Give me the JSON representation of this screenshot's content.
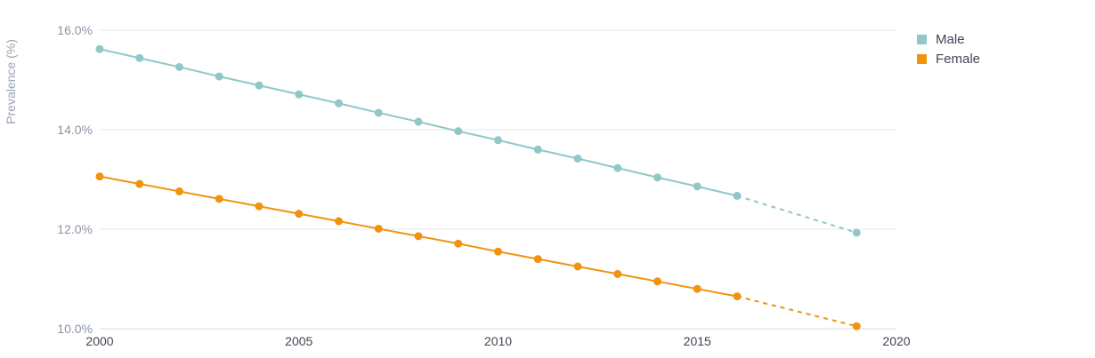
{
  "chart_data": {
    "type": "line",
    "title": "",
    "xlabel": "",
    "ylabel": "Prevalence (%)",
    "xlim": [
      2000,
      2020
    ],
    "ylim": [
      10.0,
      16.0
    ],
    "xticks": [
      "2000",
      "2005",
      "2010",
      "2015",
      "2020"
    ],
    "yticks": [
      "10.0%",
      "12.0%",
      "14.0%",
      "16.0%"
    ],
    "grid": "horizontal",
    "legend_position": "top-right",
    "projection": {
      "from": 2016,
      "to": 2019,
      "style": "dashed"
    },
    "series": [
      {
        "name": "Male",
        "color": "#91c7c7",
        "x": [
          2000,
          2001,
          2002,
          2003,
          2004,
          2005,
          2006,
          2007,
          2008,
          2009,
          2010,
          2011,
          2012,
          2013,
          2014,
          2015,
          2016,
          2019
        ],
        "values": [
          15.62,
          15.44,
          15.26,
          15.07,
          14.89,
          14.71,
          14.53,
          14.34,
          14.16,
          13.97,
          13.79,
          13.6,
          13.42,
          13.23,
          13.04,
          12.86,
          12.67,
          11.93
        ]
      },
      {
        "name": "Female",
        "color": "#f0930f",
        "x": [
          2000,
          2001,
          2002,
          2003,
          2004,
          2005,
          2006,
          2007,
          2008,
          2009,
          2010,
          2011,
          2012,
          2013,
          2014,
          2015,
          2016,
          2019
        ],
        "values": [
          13.06,
          12.91,
          12.76,
          12.61,
          12.46,
          12.31,
          12.16,
          12.01,
          11.86,
          11.71,
          11.55,
          11.4,
          11.25,
          11.1,
          10.95,
          10.8,
          10.65,
          10.05
        ]
      }
    ]
  }
}
